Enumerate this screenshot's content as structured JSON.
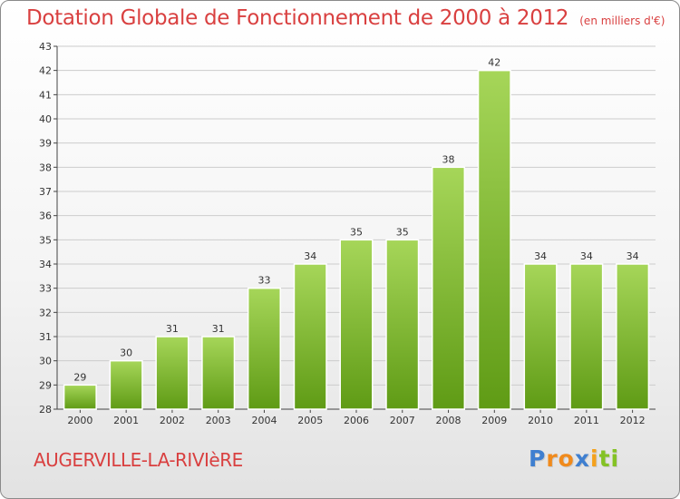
{
  "title": "Dotation Globale de Fonctionnement de 2000 à 2012",
  "unit": "(en milliers d'€)",
  "commune": "AUGERVILLE-LA-RIVIèRE",
  "logo": {
    "letters": [
      "P",
      "ro",
      "x",
      "i",
      "ti"
    ]
  },
  "colors": {
    "title": "#d94040",
    "bar_top": "#a6d659",
    "bar_bottom": "#5f9b15",
    "grid": "#cccccc",
    "axis": "#444444"
  },
  "chart_data": {
    "type": "bar",
    "title": "Dotation Globale de Fonctionnement de 2000 à 2012",
    "categories": [
      "2000",
      "2001",
      "2002",
      "2003",
      "2004",
      "2005",
      "2006",
      "2007",
      "2008",
      "2009",
      "2010",
      "2011",
      "2012"
    ],
    "values": [
      29,
      30,
      31,
      31,
      33,
      34,
      35,
      35,
      38,
      42,
      34,
      34,
      34
    ],
    "data_labels": [
      "29",
      "30",
      "31",
      "31",
      "33",
      "34",
      "35",
      "35",
      "38",
      "42",
      "34",
      "34",
      "34"
    ],
    "yticks": [
      "28",
      "29",
      "30",
      "31",
      "32",
      "33",
      "34",
      "35",
      "36",
      "37",
      "38",
      "39",
      "40",
      "41",
      "42",
      "43"
    ],
    "ylim": [
      28,
      43
    ],
    "xlabel": "",
    "ylabel": "",
    "grid": true,
    "legend": "none"
  }
}
